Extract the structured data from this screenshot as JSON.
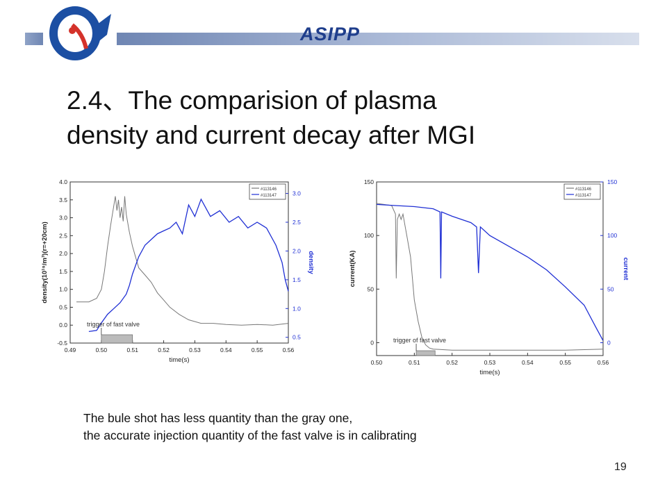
{
  "header": {
    "brand": "ASIPP",
    "colors": {
      "bar": "#6f86b3",
      "brand_text": "#1f3e8c",
      "logo_blue": "#1c4fa3",
      "logo_red": "#d4322a"
    }
  },
  "slide": {
    "title_line1": "2.4、The comparision of plasma",
    "title_line2": "density and current decay after MGI",
    "caption_line1": "The bule shot  has less quantity than the gray one,",
    "caption_line2": "the accurate injection quantity of the fast valve is in calibrating",
    "page_number": "19"
  },
  "chart_data": [
    {
      "type": "line",
      "xlabel": "time(s)",
      "ylabel": "density(10¹⁹/m³)(r=+20cm)",
      "y2label": "density",
      "xlim": [
        0.49,
        0.56
      ],
      "ylim": [
        -0.5,
        4.0
      ],
      "y2lim": [
        0.4,
        3.2
      ],
      "xticks": [
        "0.49",
        "0.50",
        "0.51",
        "0.52",
        "0.53",
        "0.54",
        "0.55",
        "0.56"
      ],
      "yticks": [
        "-0.5",
        "0.0",
        "0.5",
        "1.0",
        "1.5",
        "2.0",
        "2.5",
        "3.0",
        "3.5",
        "4.0"
      ],
      "y2ticks": [
        "0.5",
        "1.0",
        "1.5",
        "2.0",
        "2.5",
        "3.0"
      ],
      "annotation": "trigger of fast valve",
      "trigger_window": [
        0.5,
        0.51
      ],
      "legend_position": "top-right",
      "series": [
        {
          "name": "#113146",
          "axis": "left",
          "color": "#777777",
          "x": [
            0.492,
            0.496,
            0.4985,
            0.5,
            0.501,
            0.502,
            0.503,
            0.5045,
            0.505,
            0.5055,
            0.506,
            0.5065,
            0.507,
            0.5075,
            0.508,
            0.509,
            0.51,
            0.511,
            0.512,
            0.514,
            0.516,
            0.518,
            0.52,
            0.522,
            0.525,
            0.528,
            0.532,
            0.536,
            0.54,
            0.545,
            0.55,
            0.555,
            0.56
          ],
          "values": [
            0.65,
            0.65,
            0.75,
            1.0,
            1.5,
            2.2,
            2.8,
            3.6,
            3.2,
            3.5,
            3.0,
            3.3,
            2.9,
            3.6,
            3.1,
            2.6,
            2.2,
            1.9,
            1.6,
            1.4,
            1.2,
            0.9,
            0.7,
            0.5,
            0.3,
            0.15,
            0.05,
            0.05,
            0.02,
            0.0,
            0.02,
            0.0,
            0.05
          ]
        },
        {
          "name": "#113147",
          "axis": "right",
          "color": "#1f2fd4",
          "x": [
            0.496,
            0.4985,
            0.5,
            0.502,
            0.504,
            0.506,
            0.508,
            0.509,
            0.51,
            0.512,
            0.514,
            0.516,
            0.518,
            0.52,
            0.522,
            0.524,
            0.526,
            0.528,
            0.53,
            0.532,
            0.535,
            0.538,
            0.541,
            0.544,
            0.547,
            0.55,
            0.553,
            0.556,
            0.558,
            0.559,
            0.56
          ],
          "values": [
            0.6,
            0.62,
            0.75,
            0.9,
            1.0,
            1.1,
            1.25,
            1.4,
            1.6,
            1.9,
            2.1,
            2.2,
            2.3,
            2.35,
            2.4,
            2.5,
            2.3,
            2.8,
            2.6,
            2.9,
            2.6,
            2.7,
            2.5,
            2.6,
            2.4,
            2.5,
            2.4,
            2.1,
            1.8,
            1.5,
            1.3
          ]
        }
      ]
    },
    {
      "type": "line",
      "xlabel": "time(s)",
      "ylabel": "current(KA)",
      "y2label": "current",
      "xlim": [
        0.5,
        0.56
      ],
      "ylim": [
        -12,
        150
      ],
      "y2lim": [
        -12,
        150
      ],
      "xticks": [
        "0.50",
        "0.51",
        "0.52",
        "0.53",
        "0.54",
        "0.55",
        "0.56"
      ],
      "yticks": [
        "0",
        "50",
        "100",
        "150"
      ],
      "y2ticks": [
        "0",
        "50",
        "100",
        "150"
      ],
      "annotation": "trigger of fast valve",
      "trigger_window": [
        0.5105,
        0.5155
      ],
      "legend_position": "top-right",
      "series": [
        {
          "name": "#113146",
          "axis": "left",
          "color": "#777777",
          "x": [
            0.5,
            0.504,
            0.505,
            0.5052,
            0.5055,
            0.506,
            0.5065,
            0.507,
            0.5075,
            0.508,
            0.509,
            0.51,
            0.511,
            0.512,
            0.513,
            0.514,
            0.515,
            0.52,
            0.53,
            0.54,
            0.55,
            0.56
          ],
          "values": [
            130,
            128,
            120,
            60,
            115,
            120,
            115,
            120,
            110,
            100,
            80,
            40,
            20,
            5,
            -2,
            -5,
            -6,
            -7,
            -7,
            -7,
            -7,
            -6
          ]
        },
        {
          "name": "#113147",
          "axis": "right",
          "color": "#1f2fd4",
          "x": [
            0.5,
            0.505,
            0.51,
            0.515,
            0.5168,
            0.517,
            0.5172,
            0.52,
            0.525,
            0.5265,
            0.527,
            0.5275,
            0.53,
            0.535,
            0.54,
            0.545,
            0.55,
            0.555,
            0.558,
            0.56
          ],
          "values": [
            129,
            128,
            127,
            125,
            122,
            60,
            122,
            118,
            112,
            108,
            65,
            108,
            100,
            90,
            80,
            68,
            52,
            35,
            15,
            2
          ]
        }
      ]
    }
  ]
}
